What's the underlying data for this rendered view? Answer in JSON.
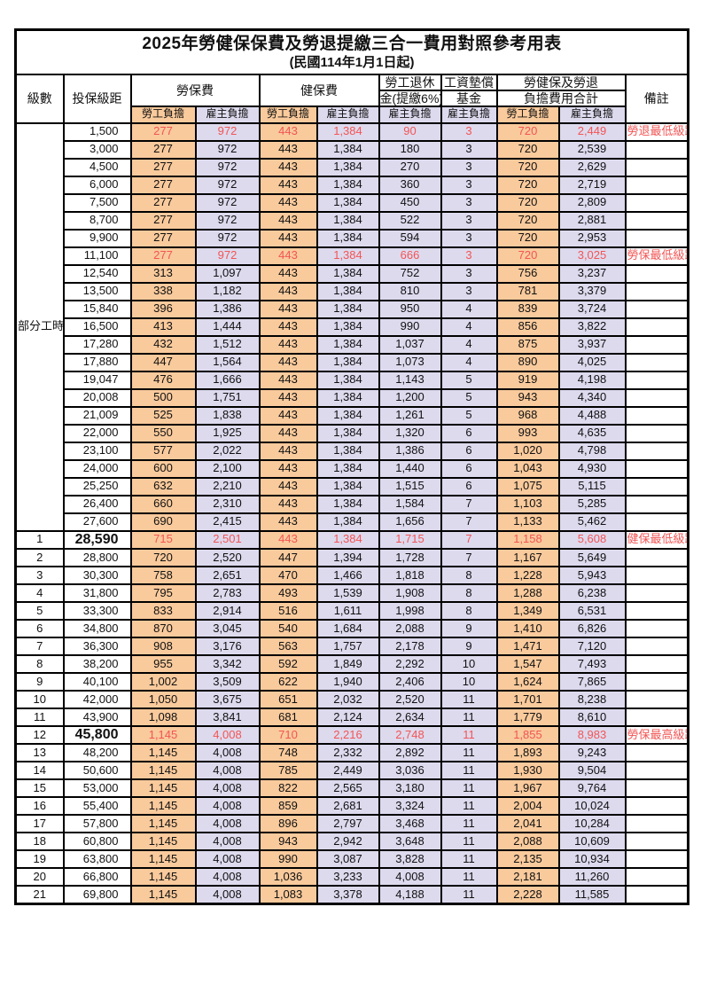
{
  "title": {
    "main": "2025年勞健保保費及勞退提繳三合一費用對照參考用表",
    "sub": "(民國114年1月1日起)"
  },
  "header": {
    "level": "級數",
    "bracket": "投保級距",
    "labor_ins": "勞保費",
    "health_ins": "健保費",
    "pension_l1": "勞工退休",
    "pension_l2": "金(提繳6%)",
    "wage_l1": "工資墊償",
    "wage_l2": "基金",
    "total_l1": "勞健保及勞退",
    "total_l2": "負擔費用合計",
    "note": "備註",
    "emp": "勞工負擔",
    "er": "雇主負擔"
  },
  "part_time_label": "部分工時",
  "part_time_rowspan": 23,
  "colors": {
    "employee_bg": "#F9CA9C",
    "employer_bg": "#DDDAEE",
    "highlight_red": "#F25555"
  },
  "rows": [
    {
      "lv": null,
      "amt": "1,500",
      "v": [
        "277",
        "972",
        "443",
        "1,384",
        "90",
        "3",
        "720",
        "2,449"
      ],
      "note": "勞退最低級距",
      "red": true
    },
    {
      "lv": null,
      "amt": "3,000",
      "v": [
        "277",
        "972",
        "443",
        "1,384",
        "180",
        "3",
        "720",
        "2,539"
      ]
    },
    {
      "lv": null,
      "amt": "4,500",
      "v": [
        "277",
        "972",
        "443",
        "1,384",
        "270",
        "3",
        "720",
        "2,629"
      ]
    },
    {
      "lv": null,
      "amt": "6,000",
      "v": [
        "277",
        "972",
        "443",
        "1,384",
        "360",
        "3",
        "720",
        "2,719"
      ]
    },
    {
      "lv": null,
      "amt": "7,500",
      "v": [
        "277",
        "972",
        "443",
        "1,384",
        "450",
        "3",
        "720",
        "2,809"
      ]
    },
    {
      "lv": null,
      "amt": "8,700",
      "v": [
        "277",
        "972",
        "443",
        "1,384",
        "522",
        "3",
        "720",
        "2,881"
      ]
    },
    {
      "lv": null,
      "amt": "9,900",
      "v": [
        "277",
        "972",
        "443",
        "1,384",
        "594",
        "3",
        "720",
        "2,953"
      ]
    },
    {
      "lv": null,
      "amt": "11,100",
      "v": [
        "277",
        "972",
        "443",
        "1,384",
        "666",
        "3",
        "720",
        "3,025"
      ],
      "note": "勞保最低級距",
      "red": true
    },
    {
      "lv": null,
      "amt": "12,540",
      "v": [
        "313",
        "1,097",
        "443",
        "1,384",
        "752",
        "3",
        "756",
        "3,237"
      ]
    },
    {
      "lv": null,
      "amt": "13,500",
      "v": [
        "338",
        "1,182",
        "443",
        "1,384",
        "810",
        "3",
        "781",
        "3,379"
      ]
    },
    {
      "lv": null,
      "amt": "15,840",
      "v": [
        "396",
        "1,386",
        "443",
        "1,384",
        "950",
        "4",
        "839",
        "3,724"
      ]
    },
    {
      "lv": null,
      "amt": "16,500",
      "v": [
        "413",
        "1,444",
        "443",
        "1,384",
        "990",
        "4",
        "856",
        "3,822"
      ]
    },
    {
      "lv": null,
      "amt": "17,280",
      "v": [
        "432",
        "1,512",
        "443",
        "1,384",
        "1,037",
        "4",
        "875",
        "3,937"
      ]
    },
    {
      "lv": null,
      "amt": "17,880",
      "v": [
        "447",
        "1,564",
        "443",
        "1,384",
        "1,073",
        "4",
        "890",
        "4,025"
      ]
    },
    {
      "lv": null,
      "amt": "19,047",
      "v": [
        "476",
        "1,666",
        "443",
        "1,384",
        "1,143",
        "5",
        "919",
        "4,198"
      ]
    },
    {
      "lv": null,
      "amt": "20,008",
      "v": [
        "500",
        "1,751",
        "443",
        "1,384",
        "1,200",
        "5",
        "943",
        "4,340"
      ]
    },
    {
      "lv": null,
      "amt": "21,009",
      "v": [
        "525",
        "1,838",
        "443",
        "1,384",
        "1,261",
        "5",
        "968",
        "4,488"
      ]
    },
    {
      "lv": null,
      "amt": "22,000",
      "v": [
        "550",
        "1,925",
        "443",
        "1,384",
        "1,320",
        "6",
        "993",
        "4,635"
      ]
    },
    {
      "lv": null,
      "amt": "23,100",
      "v": [
        "577",
        "2,022",
        "443",
        "1,384",
        "1,386",
        "6",
        "1,020",
        "4,798"
      ]
    },
    {
      "lv": null,
      "amt": "24,000",
      "v": [
        "600",
        "2,100",
        "443",
        "1,384",
        "1,440",
        "6",
        "1,043",
        "4,930"
      ]
    },
    {
      "lv": null,
      "amt": "25,250",
      "v": [
        "632",
        "2,210",
        "443",
        "1,384",
        "1,515",
        "6",
        "1,075",
        "5,115"
      ]
    },
    {
      "lv": null,
      "amt": "26,400",
      "v": [
        "660",
        "2,310",
        "443",
        "1,384",
        "1,584",
        "7",
        "1,103",
        "5,285"
      ]
    },
    {
      "lv": null,
      "amt": "27,600",
      "v": [
        "690",
        "2,415",
        "443",
        "1,384",
        "1,656",
        "7",
        "1,133",
        "5,462"
      ]
    },
    {
      "lv": "1",
      "amt": "28,590",
      "v": [
        "715",
        "2,501",
        "443",
        "1,384",
        "1,715",
        "7",
        "1,158",
        "5,608"
      ],
      "note": "健保最低級距",
      "red": true,
      "big": true
    },
    {
      "lv": "2",
      "amt": "28,800",
      "v": [
        "720",
        "2,520",
        "447",
        "1,394",
        "1,728",
        "7",
        "1,167",
        "5,649"
      ]
    },
    {
      "lv": "3",
      "amt": "30,300",
      "v": [
        "758",
        "2,651",
        "470",
        "1,466",
        "1,818",
        "8",
        "1,228",
        "5,943"
      ]
    },
    {
      "lv": "4",
      "amt": "31,800",
      "v": [
        "795",
        "2,783",
        "493",
        "1,539",
        "1,908",
        "8",
        "1,288",
        "6,238"
      ]
    },
    {
      "lv": "5",
      "amt": "33,300",
      "v": [
        "833",
        "2,914",
        "516",
        "1,611",
        "1,998",
        "8",
        "1,349",
        "6,531"
      ]
    },
    {
      "lv": "6",
      "amt": "34,800",
      "v": [
        "870",
        "3,045",
        "540",
        "1,684",
        "2,088",
        "9",
        "1,410",
        "6,826"
      ]
    },
    {
      "lv": "7",
      "amt": "36,300",
      "v": [
        "908",
        "3,176",
        "563",
        "1,757",
        "2,178",
        "9",
        "1,471",
        "7,120"
      ]
    },
    {
      "lv": "8",
      "amt": "38,200",
      "v": [
        "955",
        "3,342",
        "592",
        "1,849",
        "2,292",
        "10",
        "1,547",
        "7,493"
      ]
    },
    {
      "lv": "9",
      "amt": "40,100",
      "v": [
        "1,002",
        "3,509",
        "622",
        "1,940",
        "2,406",
        "10",
        "1,624",
        "7,865"
      ]
    },
    {
      "lv": "10",
      "amt": "42,000",
      "v": [
        "1,050",
        "3,675",
        "651",
        "2,032",
        "2,520",
        "11",
        "1,701",
        "8,238"
      ]
    },
    {
      "lv": "11",
      "amt": "43,900",
      "v": [
        "1,098",
        "3,841",
        "681",
        "2,124",
        "2,634",
        "11",
        "1,779",
        "8,610"
      ]
    },
    {
      "lv": "12",
      "amt": "45,800",
      "v": [
        "1,145",
        "4,008",
        "710",
        "2,216",
        "2,748",
        "11",
        "1,855",
        "8,983"
      ],
      "note": "勞保最高級距",
      "red": true,
      "big": true
    },
    {
      "lv": "13",
      "amt": "48,200",
      "v": [
        "1,145",
        "4,008",
        "748",
        "2,332",
        "2,892",
        "11",
        "1,893",
        "9,243"
      ]
    },
    {
      "lv": "14",
      "amt": "50,600",
      "v": [
        "1,145",
        "4,008",
        "785",
        "2,449",
        "3,036",
        "11",
        "1,930",
        "9,504"
      ]
    },
    {
      "lv": "15",
      "amt": "53,000",
      "v": [
        "1,145",
        "4,008",
        "822",
        "2,565",
        "3,180",
        "11",
        "1,967",
        "9,764"
      ]
    },
    {
      "lv": "16",
      "amt": "55,400",
      "v": [
        "1,145",
        "4,008",
        "859",
        "2,681",
        "3,324",
        "11",
        "2,004",
        "10,024"
      ]
    },
    {
      "lv": "17",
      "amt": "57,800",
      "v": [
        "1,145",
        "4,008",
        "896",
        "2,797",
        "3,468",
        "11",
        "2,041",
        "10,284"
      ]
    },
    {
      "lv": "18",
      "amt": "60,800",
      "v": [
        "1,145",
        "4,008",
        "943",
        "2,942",
        "3,648",
        "11",
        "2,088",
        "10,609"
      ]
    },
    {
      "lv": "19",
      "amt": "63,800",
      "v": [
        "1,145",
        "4,008",
        "990",
        "3,087",
        "3,828",
        "11",
        "2,135",
        "10,934"
      ]
    },
    {
      "lv": "20",
      "amt": "66,800",
      "v": [
        "1,145",
        "4,008",
        "1,036",
        "3,233",
        "4,008",
        "11",
        "2,181",
        "11,260"
      ]
    },
    {
      "lv": "21",
      "amt": "69,800",
      "v": [
        "1,145",
        "4,008",
        "1,083",
        "3,378",
        "4,188",
        "11",
        "2,228",
        "11,585"
      ]
    }
  ]
}
